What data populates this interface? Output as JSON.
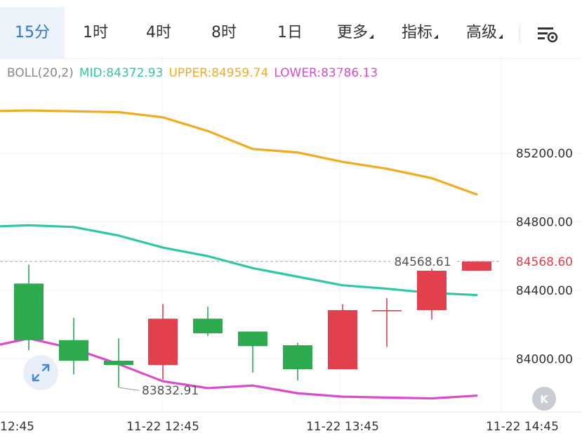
{
  "tabs": [
    {
      "label": "15分",
      "active": true
    },
    {
      "label": "1时",
      "active": false
    },
    {
      "label": "4时",
      "active": false
    },
    {
      "label": "8时",
      "active": false
    },
    {
      "label": "1日",
      "active": false
    },
    {
      "label": "更多",
      "active": false,
      "dropdown": true
    },
    {
      "label": "指标",
      "active": false,
      "dropdown": true
    },
    {
      "label": "高级",
      "active": false,
      "dropdown": true
    }
  ],
  "icons": {
    "settings": "chart-settings-icon",
    "expand": "expand-diagonal-icon",
    "k_button": "k-icon"
  },
  "legend": {
    "indicator": "BOLL(20,2)",
    "mid": "MID:84372.93",
    "upper": "UPPER:84959.74",
    "lower": "LOWER:83786.13"
  },
  "k_label": "K",
  "colors": {
    "active_tab_bg": "#edf3fb",
    "active_tab_text": "#2f72d8",
    "mid": "#2ec7a7",
    "upper": "#f0ac1e",
    "lower": "#d94ccf",
    "up": "#e2404d",
    "down": "#2daa4e",
    "current_price": "#e2404d",
    "grid": "#f0f2f5",
    "axis_text": "#333333",
    "legend_indicator": "#888888"
  },
  "chart_data": {
    "type": "candlestick",
    "y_axis_ticks": [
      84000,
      84400,
      84800,
      85200
    ],
    "y_axis_tick_labels": [
      "84000.00",
      "84400.00",
      "84800.00",
      "85200.00"
    ],
    "x_axis_labels": [
      "12:45",
      "11-22 12:45",
      "11-22 13:45",
      "11-22 14:45"
    ],
    "current_price_label": "84568.60",
    "last_price_annotation": "84568.61",
    "min_annotation": "83832.91",
    "candles": [
      {
        "open": 84440,
        "high": 84550,
        "low": 84050,
        "close": 84110,
        "direction": "down"
      },
      {
        "open": 84110,
        "high": 84240,
        "low": 83910,
        "close": 83990,
        "direction": "down"
      },
      {
        "open": 83990,
        "high": 84120,
        "low": 83833,
        "close": 83965,
        "direction": "down"
      },
      {
        "open": 83965,
        "high": 84320,
        "low": 83880,
        "close": 84235,
        "direction": "up"
      },
      {
        "open": 84235,
        "high": 84305,
        "low": 84135,
        "close": 84150,
        "direction": "down"
      },
      {
        "open": 84160,
        "high": 84160,
        "low": 83920,
        "close": 84075,
        "direction": "down"
      },
      {
        "open": 84080,
        "high": 84095,
        "low": 83875,
        "close": 83940,
        "direction": "down"
      },
      {
        "open": 83940,
        "high": 84320,
        "low": 83940,
        "close": 84285,
        "direction": "up"
      },
      {
        "open": 84285,
        "high": 84355,
        "low": 84070,
        "close": 84285,
        "direction": "up"
      },
      {
        "open": 84285,
        "high": 84560,
        "low": 84230,
        "close": 84515,
        "direction": "up"
      },
      {
        "open": 84515,
        "high": 84570,
        "low": 84515,
        "close": 84569,
        "direction": "up"
      }
    ],
    "mid_line": [
      84780,
      84770,
      84720,
      84650,
      84600,
      84530,
      84480,
      84430,
      84410,
      84385,
      84373
    ],
    "upper_line": [
      85450,
      85445,
      85440,
      85410,
      85330,
      85225,
      85205,
      85150,
      85110,
      85055,
      84960
    ],
    "lower_line": [
      84120,
      84060,
      83970,
      83870,
      83830,
      83845,
      83800,
      83780,
      83775,
      83770,
      83786
    ]
  }
}
